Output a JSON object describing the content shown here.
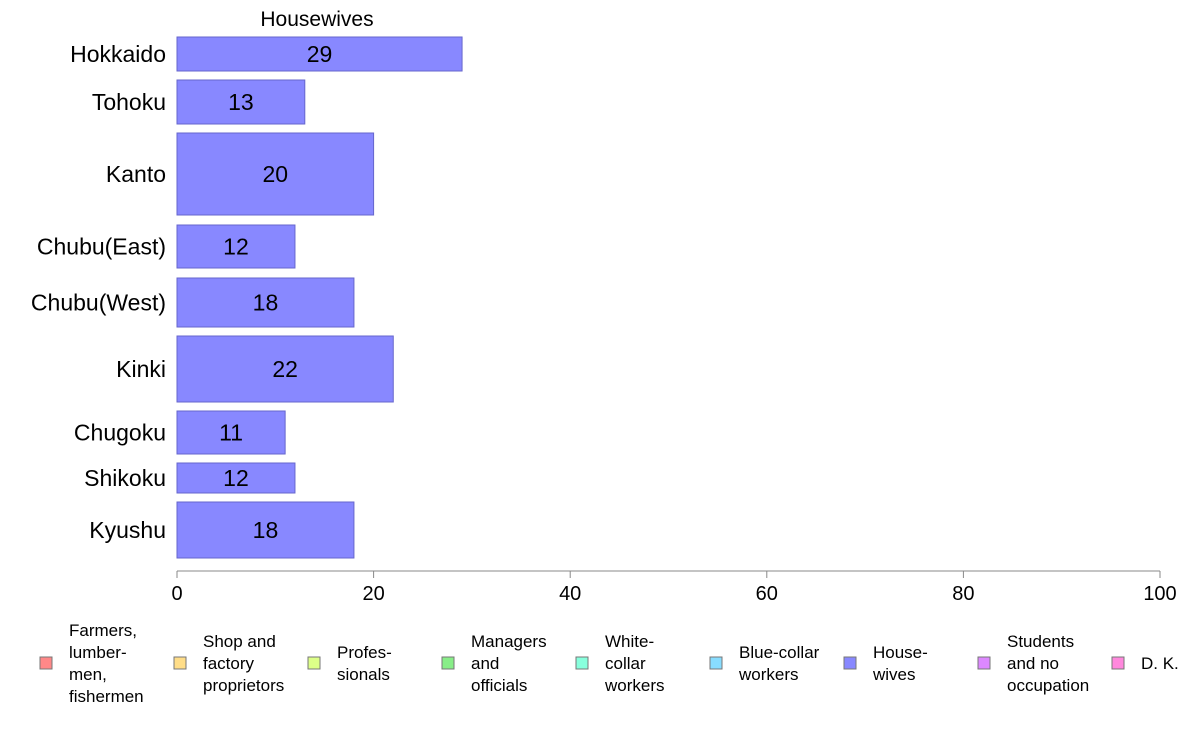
{
  "chart_data": {
    "type": "bar",
    "orientation": "horizontal",
    "title": "Housewives",
    "categories": [
      "Hokkaido",
      "Tohoku",
      "Kanto",
      "Chubu(East)",
      "Chubu(West)",
      "Kinki",
      "Chugoku",
      "Shikoku",
      "Kyushu"
    ],
    "series": [
      {
        "name": "Housewives",
        "color": "#8888ff",
        "values": [
          29,
          13,
          20,
          12,
          18,
          22,
          11,
          12,
          18
        ]
      }
    ],
    "xlim": [
      0,
      100
    ],
    "xticks": [
      0,
      20,
      40,
      60,
      80,
      100
    ],
    "grid": false,
    "legend": {
      "placement": "bottom",
      "items": [
        {
          "lines": [
            "Farmers,",
            "lumber-",
            "men,",
            "fishermen"
          ],
          "color": "#ff8888"
        },
        {
          "lines": [
            "Shop and",
            "factory",
            "proprietors"
          ],
          "color": "#ffdd88"
        },
        {
          "lines": [
            "Profes-",
            "sionals"
          ],
          "color": "#ddff88"
        },
        {
          "lines": [
            "Managers",
            "and",
            "officials"
          ],
          "color": "#88ee88"
        },
        {
          "lines": [
            "White-",
            "collar",
            "workers"
          ],
          "color": "#88ffdd"
        },
        {
          "lines": [
            "Blue-collar",
            "workers"
          ],
          "color": "#88ddff"
        },
        {
          "lines": [
            "House-",
            "wives"
          ],
          "color": "#8888ff"
        },
        {
          "lines": [
            "Students",
            "and no",
            "occupation"
          ],
          "color": "#dd88ff"
        },
        {
          "lines": [
            "D. K."
          ],
          "color": "#ff88dd"
        }
      ]
    }
  }
}
